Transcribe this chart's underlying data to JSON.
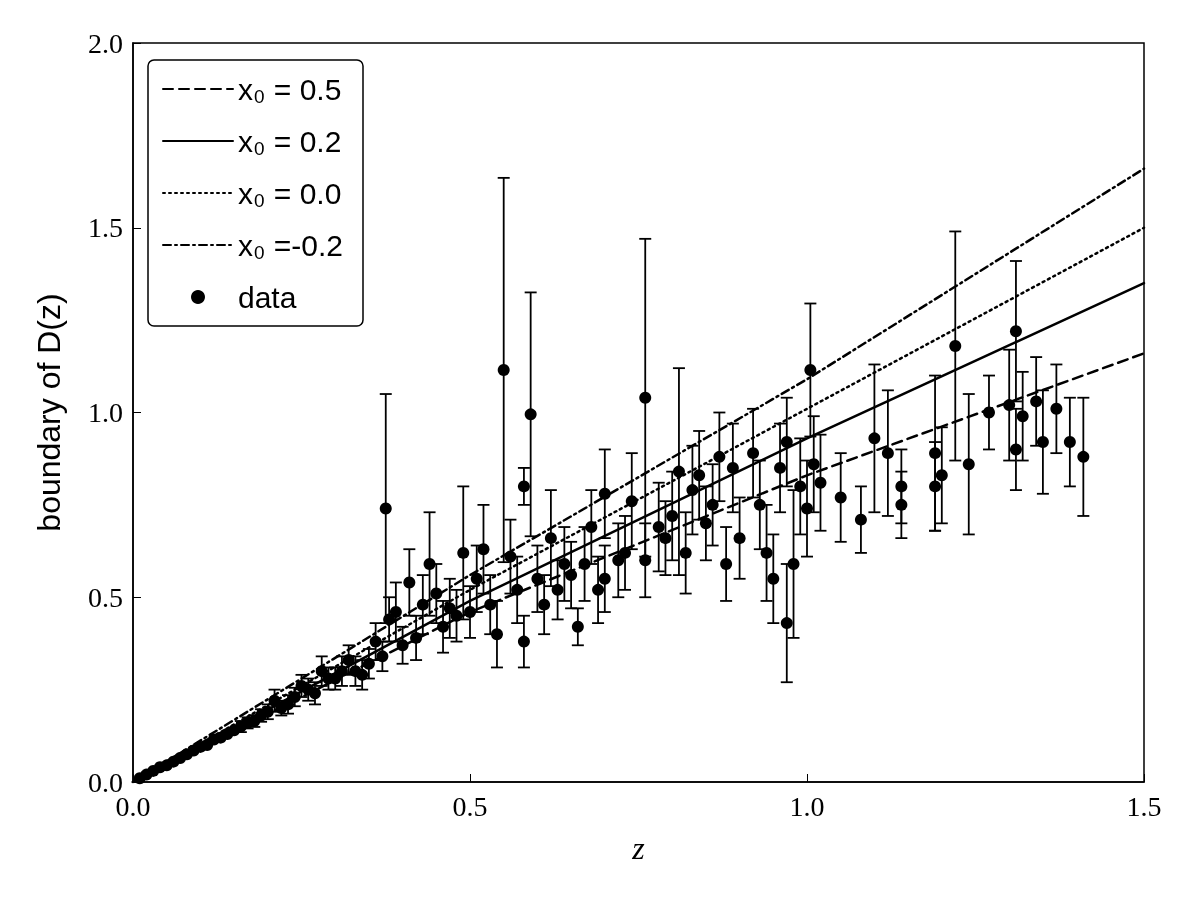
{
  "chart_data": {
    "type": "scatter",
    "xlabel": "z",
    "ylabel": "boundary of D(z)",
    "xlim": [
      0,
      1.5
    ],
    "ylim": [
      0,
      2.0
    ],
    "xticks": [
      {
        "value": 0,
        "label": "0.0"
      },
      0.5,
      {
        "value": 1,
        "label": "1.0"
      },
      1.5
    ],
    "yticks": [
      {
        "value": 0,
        "label": "0.0"
      },
      0.5,
      {
        "value": 1,
        "label": "1.0"
      },
      1.5,
      {
        "value": 2,
        "label": "2.0"
      }
    ],
    "grid": false,
    "legend": "top left",
    "series": [
      {
        "name": "x₀ = 0.5",
        "type": "line",
        "color": "#000000",
        "line_style": "dashed",
        "marker": "none",
        "x": [
          0,
          0.5,
          1.0,
          1.5
        ],
        "values": [
          0,
          0.46,
          0.83,
          1.16
        ]
      },
      {
        "name": "x₀ = 0.2",
        "type": "line",
        "color": "#000000",
        "line_style": "solid",
        "marker": "none",
        "x": [
          0,
          0.5,
          1.0,
          1.5
        ],
        "values": [
          0,
          0.49,
          0.93,
          1.35
        ]
      },
      {
        "name": "x₀ = 0.0",
        "type": "line",
        "color": "#000000",
        "line_style": "dotted",
        "marker": "none",
        "x": [
          0,
          0.5,
          1.0,
          1.5
        ],
        "values": [
          0,
          0.52,
          1.01,
          1.5
        ]
      },
      {
        "name": "x₀ =-0.2",
        "type": "line",
        "color": "#000000",
        "line_style": "dashdot",
        "marker": "none",
        "x": [
          0,
          0.5,
          1.0,
          1.5
        ],
        "values": [
          0,
          0.56,
          1.09,
          1.66
        ]
      },
      {
        "name": "data",
        "color": "#000000",
        "marker": "circle",
        "x": [
          0.01,
          0.02,
          0.03,
          0.04,
          0.05,
          0.06,
          0.07,
          0.08,
          0.09,
          0.1,
          0.11,
          0.12,
          0.13,
          0.14,
          0.15,
          0.16,
          0.17,
          0.18,
          0.19,
          0.2,
          0.21,
          0.22,
          0.23,
          0.24,
          0.25,
          0.26,
          0.27,
          0.28,
          0.29,
          0.3,
          0.31,
          0.32,
          0.33,
          0.34,
          0.35,
          0.36,
          0.37,
          0.375,
          0.38,
          0.39,
          0.4,
          0.41,
          0.42,
          0.43,
          0.44,
          0.45,
          0.46,
          0.47,
          0.48,
          0.49,
          0.5,
          0.51,
          0.52,
          0.53,
          0.54,
          0.55,
          0.56,
          0.57,
          0.58,
          0.58,
          0.59,
          0.6,
          0.61,
          0.62,
          0.63,
          0.64,
          0.65,
          0.66,
          0.67,
          0.68,
          0.69,
          0.7,
          0.7,
          0.72,
          0.73,
          0.74,
          0.76,
          0.76,
          0.78,
          0.79,
          0.8,
          0.81,
          0.82,
          0.83,
          0.84,
          0.85,
          0.86,
          0.87,
          0.88,
          0.89,
          0.9,
          0.92,
          0.93,
          0.94,
          0.95,
          0.96,
          0.97,
          0.97,
          0.98,
          0.99,
          1.0,
          1.005,
          1.01,
          1.02,
          1.05,
          1.08,
          1.1,
          1.12,
          1.14,
          1.14,
          1.19,
          1.19,
          1.2,
          1.22,
          1.24,
          1.27,
          1.3,
          1.31,
          1.31,
          1.32,
          1.34,
          1.35,
          1.37,
          1.39,
          1.41
        ],
        "values": [
          0.01,
          0.02,
          0.03,
          0.04,
          0.045,
          0.055,
          0.065,
          0.075,
          0.085,
          0.095,
          0.1,
          0.115,
          0.12,
          0.13,
          0.14,
          0.15,
          0.16,
          0.165,
          0.18,
          0.19,
          0.22,
          0.2,
          0.21,
          0.23,
          0.26,
          0.25,
          0.24,
          0.3,
          0.28,
          0.28,
          0.3,
          0.33,
          0.3,
          0.29,
          0.32,
          0.38,
          0.34,
          0.74,
          0.44,
          0.46,
          0.37,
          0.54,
          0.39,
          0.48,
          0.59,
          0.51,
          0.42,
          0.47,
          0.45,
          0.62,
          0.46,
          0.55,
          0.63,
          0.48,
          0.4,
          1.115,
          0.61,
          0.52,
          0.8,
          0.38,
          0.995,
          0.55,
          0.48,
          0.66,
          0.52,
          0.59,
          0.56,
          0.42,
          0.59,
          0.69,
          0.52,
          0.78,
          0.55,
          0.6,
          0.62,
          0.76,
          0.6,
          1.04,
          0.69,
          0.66,
          0.72,
          0.84,
          0.62,
          0.79,
          0.83,
          0.7,
          0.75,
          0.88,
          0.59,
          0.85,
          0.66,
          0.89,
          0.75,
          0.62,
          0.55,
          0.85,
          0.43,
          0.92,
          0.59,
          0.8,
          0.74,
          1.115,
          0.86,
          0.81,
          0.77,
          0.71,
          0.93,
          0.89,
          0.8,
          0.75,
          0.89,
          0.8,
          0.83,
          1.18,
          0.86,
          1.0,
          1.02,
          0.9,
          1.22,
          0.99,
          1.03,
          0.92,
          1.01,
          0.92,
          0.88
        ],
        "errors": [
          null,
          null,
          null,
          null,
          null,
          null,
          null,
          null,
          null,
          null,
          null,
          null,
          null,
          null,
          null,
          0.015,
          0.015,
          0.016,
          0.017,
          0.02,
          0.03,
          0.02,
          0.025,
          0.025,
          0.03,
          0.03,
          0.03,
          0.04,
          0.03,
          0.03,
          0.04,
          0.04,
          0.04,
          0.04,
          0.04,
          0.05,
          0.04,
          0.31,
          0.06,
          0.08,
          0.05,
          0.09,
          0.06,
          0.08,
          0.14,
          0.08,
          0.07,
          0.08,
          0.07,
          0.18,
          0.07,
          0.09,
          0.12,
          0.08,
          0.09,
          0.52,
          0.1,
          0.09,
          0.05,
          0.07,
          0.33,
          0.09,
          0.08,
          0.13,
          0.08,
          0.1,
          0.09,
          0.05,
          0.1,
          0.1,
          0.09,
          0.12,
          0.09,
          0.1,
          0.1,
          0.13,
          0.1,
          0.43,
          0.12,
          0.1,
          0.12,
          0.28,
          0.11,
          0.12,
          0.12,
          0.1,
          0.11,
          0.12,
          0.1,
          0.12,
          0.11,
          0.12,
          0.12,
          0.13,
          0.12,
          0.12,
          0.16,
          0.12,
          0.2,
          0.13,
          0.13,
          0.18,
          0.13,
          0.13,
          0.12,
          0.09,
          0.2,
          0.17,
          0.1,
          0.09,
          0.21,
          0.12,
          0.13,
          0.31,
          0.19,
          0.1,
          0.15,
          0.11,
          0.19,
          0.12,
          0.12,
          0.14,
          0.12,
          0.12,
          0.16
        ]
      }
    ]
  }
}
